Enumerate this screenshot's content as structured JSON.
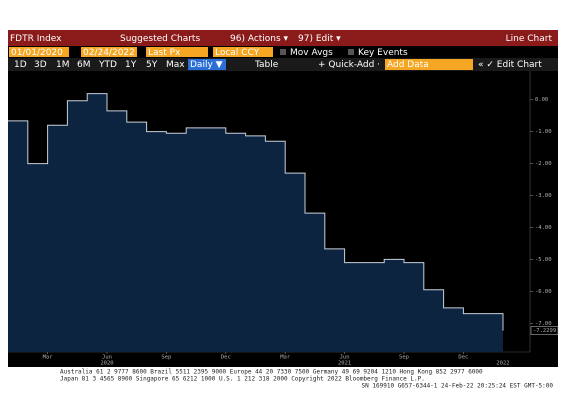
{
  "ui": {
    "top": [
      "FDTR Index",
      "Suggested Charts",
      "96) Actions ▾",
      "97) Edit ▾",
      "Line Chart"
    ],
    "fields": [
      "01/01/2020",
      "02/24/2022",
      "Last Px",
      "Local CCY",
      "Mov Avgs",
      "Key Events"
    ],
    "tabs": [
      "1D",
      "3D",
      "1M",
      "6M",
      "YTD",
      "1Y",
      "5Y",
      "Max",
      "Daily ▼",
      "Table",
      "+ Quick-Add ·",
      "Add Data",
      "« ✓ Edit Chart"
    ],
    "footer": [
      "Australia 61 2 9777 8600 Brazil 5511 2395 9000 Europe 44 20 7330 7500 Germany 49 69 9204 1210 Hong Kong 852 2977 6000",
      "Japan 81 3 4565 8900      Singapore 65 6212 1000      U.S. 1 212 318 2000      Copyright 2022 Bloomberg Finance L.P.",
      "SN 169910 G657-6344-1 24-Feb-22 20:25:24 EST  GMT-5:00"
    ]
  },
  "chart_data": {
    "type": "step-area",
    "x": [
      "2020-01",
      "2020-02",
      "2020-03",
      "2020-04",
      "2020-05",
      "2020-06",
      "2020-07",
      "2020-08",
      "2020-09",
      "2020-10",
      "2020-11",
      "2020-12",
      "2021-01",
      "2021-02",
      "2021-03",
      "2021-04",
      "2021-05",
      "2021-06",
      "2021-07",
      "2021-08",
      "2021-09",
      "2021-10",
      "2021-11",
      "2021-12",
      "2022-01",
      "2022-02"
    ],
    "values": [
      -0.66,
      -2.0,
      -0.8,
      -0.03,
      0.19,
      -0.35,
      -0.7,
      -1.0,
      -1.05,
      -0.88,
      -0.88,
      -1.05,
      -1.13,
      -1.3,
      -2.3,
      -3.55,
      -4.67,
      -5.1,
      -5.1,
      -5.0,
      -5.1,
      -5.95,
      -6.52,
      -6.7,
      -6.7,
      -7.2299
    ],
    "last_label": "-7.2299",
    "color": "#0d2440",
    "line_color": "#c8d0dc",
    "ylim": [
      -7.9,
      0.9
    ],
    "yticks": [
      {
        "value": 0,
        "label": "0.00"
      },
      {
        "value": -1,
        "label": "-1.00"
      },
      {
        "value": -2,
        "label": "-2.00"
      },
      {
        "value": -3,
        "label": "-3.00"
      },
      {
        "value": -4,
        "label": "-4.00"
      },
      {
        "value": -5,
        "label": "-5.00"
      },
      {
        "value": -6,
        "label": "-6.00"
      },
      {
        "value": -7,
        "label": "-7.00"
      }
    ],
    "xticks": [
      {
        "value": "2020-03",
        "label": "Mar"
      },
      {
        "value": "2020-06",
        "label": "Jun"
      },
      {
        "value": "2020-09",
        "label": "Sep"
      },
      {
        "value": "2020-12",
        "label": "Dec"
      },
      {
        "value": "2021-03",
        "label": "Mar"
      },
      {
        "value": "2021-06",
        "label": "Jun"
      },
      {
        "value": "2021-09",
        "label": "Sep"
      },
      {
        "value": "2021-12",
        "label": "Dec"
      }
    ],
    "year_ticks": [
      {
        "value": "2020-06",
        "label": "2020"
      },
      {
        "value": "2021-06",
        "label": "2021"
      },
      {
        "value": "2022-02",
        "label": "2022"
      }
    ]
  }
}
